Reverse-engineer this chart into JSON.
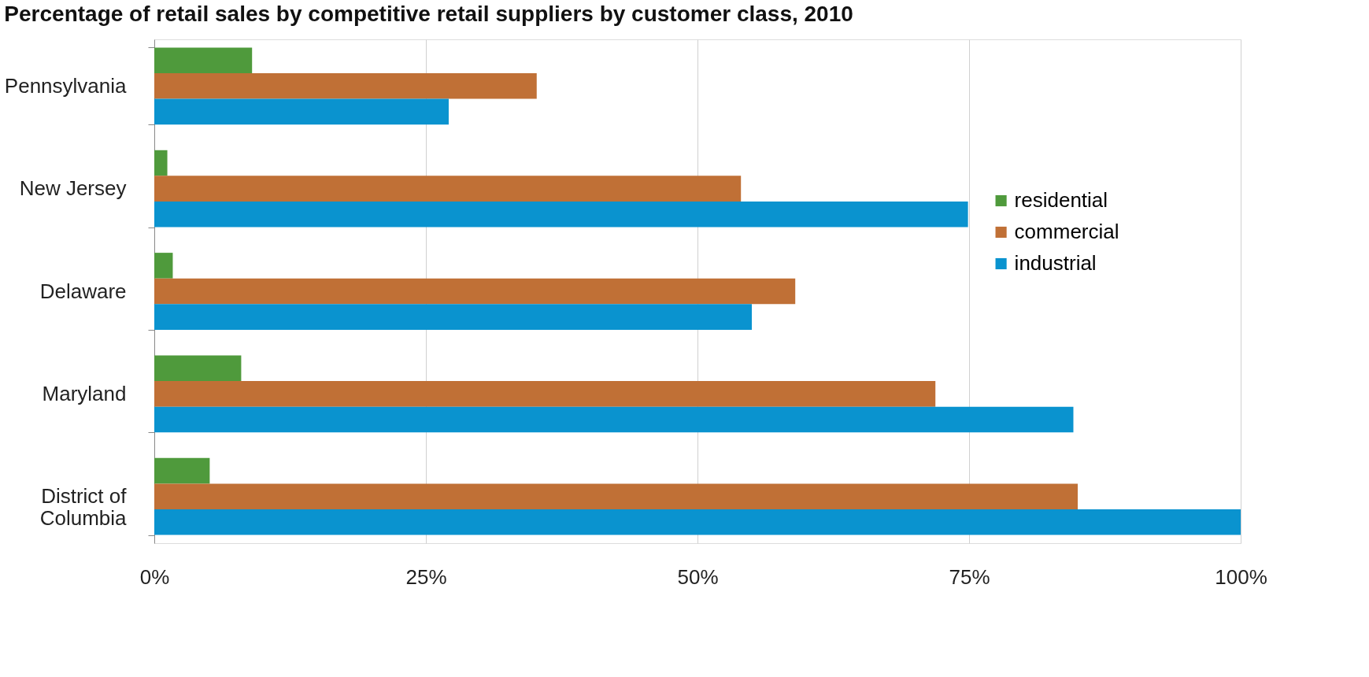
{
  "chart_data": {
    "type": "bar",
    "orientation": "horizontal",
    "title": "Percentage of retail sales by competitive retail suppliers by customer class, 2010",
    "categories": [
      "Pennsylvania",
      "New Jersey",
      "Delaware",
      "Maryland",
      "District of Columbia"
    ],
    "series": [
      {
        "name": "residential",
        "color": "#4f9a3c",
        "values": [
          9.0,
          1.2,
          1.7,
          8.0,
          5.1
        ]
      },
      {
        "name": "commercial",
        "color": "#c07036",
        "values": [
          35.2,
          54.0,
          59.0,
          71.9,
          85.0
        ]
      },
      {
        "name": "industrial",
        "color": "#0a93cf",
        "values": [
          27.1,
          74.9,
          55.0,
          84.6,
          100
        ]
      }
    ],
    "xlim": [
      0,
      100
    ],
    "xticks": [
      {
        "value": 0,
        "label": "0%"
      },
      {
        "value": 25,
        "label": "25%"
      },
      {
        "value": 50,
        "label": "50%"
      },
      {
        "value": 75,
        "label": "75%"
      },
      {
        "value": 100,
        "label": "100%"
      }
    ],
    "grid": "x",
    "legend": "right"
  }
}
